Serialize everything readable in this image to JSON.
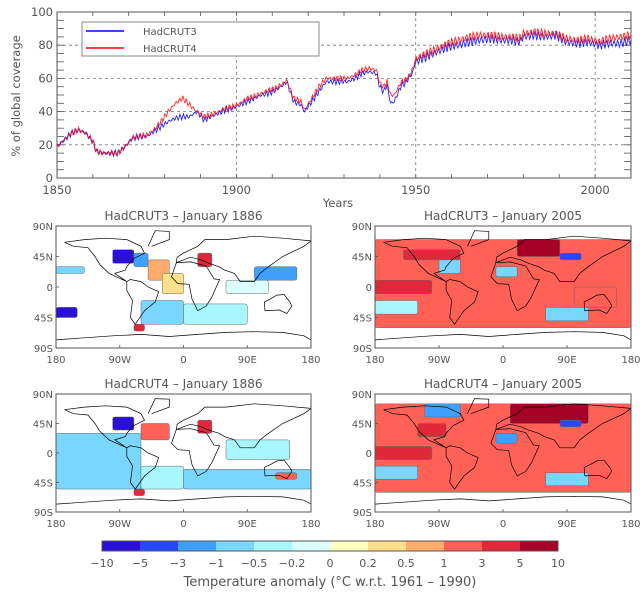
{
  "chart_data": [
    {
      "type": "line",
      "id": "coverage",
      "title": "",
      "xlabel": "Years",
      "ylabel": "% of global coverage",
      "xlim": [
        1850,
        2010
      ],
      "ylim": [
        0,
        100
      ],
      "x_ticks": [
        1850,
        1900,
        1950,
        2000
      ],
      "x_tick_labels": [
        "1850",
        "1900",
        "1950",
        "2000"
      ],
      "y_ticks": [
        0,
        20,
        40,
        60,
        80,
        100
      ],
      "y_tick_labels": [
        "0",
        "20",
        "40",
        "60",
        "80",
        "100"
      ],
      "grid": true,
      "legend": {
        "position": "top-left",
        "entries": [
          "HadCRUT3",
          "HadCRUT4"
        ]
      },
      "series": [
        {
          "name": "HadCRUT3",
          "color": "#0000ff",
          "x": [
            1850,
            1852,
            1854,
            1856,
            1858,
            1860,
            1861,
            1863,
            1865,
            1867,
            1869,
            1871,
            1873,
            1875,
            1877,
            1879,
            1881,
            1883,
            1885,
            1887,
            1889,
            1891,
            1893,
            1895,
            1897,
            1899,
            1901,
            1903,
            1905,
            1907,
            1909,
            1911,
            1913,
            1914,
            1916,
            1918,
            1919,
            1921,
            1923,
            1925,
            1927,
            1929,
            1931,
            1933,
            1935,
            1937,
            1939,
            1940,
            1941,
            1942,
            1943,
            1944,
            1945,
            1946,
            1947,
            1948,
            1949,
            1950,
            1953,
            1956,
            1959,
            1962,
            1965,
            1968,
            1971,
            1974,
            1977,
            1979,
            1980,
            1983,
            1986,
            1989,
            1992,
            1995,
            1998,
            2001,
            2004,
            2007,
            2010
          ],
          "y": [
            19,
            23,
            27,
            29,
            27,
            22,
            16,
            15,
            15,
            15,
            19,
            24,
            25,
            25,
            28,
            31,
            34,
            36,
            37,
            37,
            40,
            35,
            37,
            39,
            41,
            42,
            44,
            46,
            48,
            50,
            51,
            53,
            56,
            58,
            46,
            44,
            40,
            46,
            52,
            58,
            58,
            58,
            58,
            60,
            63,
            64,
            63,
            55,
            52,
            56,
            45,
            46,
            51,
            56,
            57,
            60,
            63,
            70,
            73,
            76,
            79,
            80,
            82,
            83,
            84,
            83,
            83,
            82,
            85,
            86,
            85,
            86,
            82,
            81,
            82,
            80,
            81,
            81,
            83
          ]
        },
        {
          "name": "HadCRUT4",
          "color": "#ff0000",
          "x": [
            1850,
            1852,
            1854,
            1856,
            1858,
            1860,
            1861,
            1863,
            1865,
            1867,
            1869,
            1871,
            1873,
            1875,
            1877,
            1879,
            1881,
            1883,
            1885,
            1887,
            1889,
            1891,
            1893,
            1895,
            1897,
            1899,
            1901,
            1903,
            1905,
            1907,
            1909,
            1911,
            1913,
            1914,
            1916,
            1918,
            1919,
            1921,
            1923,
            1925,
            1927,
            1929,
            1931,
            1933,
            1935,
            1937,
            1939,
            1940,
            1941,
            1942,
            1943,
            1944,
            1945,
            1946,
            1947,
            1948,
            1949,
            1950,
            1953,
            1956,
            1959,
            1962,
            1965,
            1968,
            1971,
            1974,
            1977,
            1979,
            1980,
            1983,
            1986,
            1989,
            1992,
            1995,
            1998,
            2001,
            2004,
            2007,
            2010
          ],
          "y": [
            19,
            23,
            27,
            29,
            27,
            22,
            16,
            15,
            15,
            15,
            19,
            24,
            25,
            26,
            29,
            34,
            40,
            45,
            48,
            44,
            40,
            37,
            38,
            40,
            42,
            43,
            45,
            48,
            49,
            51,
            53,
            54,
            57,
            59,
            48,
            46,
            41,
            48,
            55,
            60,
            60,
            60,
            60,
            62,
            65,
            66,
            65,
            57,
            55,
            58,
            50,
            50,
            54,
            58,
            59,
            61,
            65,
            72,
            75,
            78,
            81,
            83,
            85,
            86,
            86,
            85,
            85,
            84,
            87,
            88,
            87,
            87,
            84,
            83,
            84,
            82,
            84,
            85,
            86
          ]
        }
      ]
    },
    {
      "type": "heatmap",
      "id": "map-h3-1886",
      "title": "HadCRUT3 – January 1886",
      "dataset": "HadCRUT3",
      "xlim": [
        -180,
        180
      ],
      "ylim": [
        -90,
        90
      ],
      "x_tick_labels": [
        "180",
        "90W",
        "0",
        "90E",
        "180"
      ],
      "y_tick_labels": [
        "90N",
        "45N",
        "0",
        "45S",
        "90S"
      ],
      "regions": [
        {
          "lon": [
            -100,
            -70
          ],
          "lat": [
            35,
            55
          ],
          "bin": 0
        },
        {
          "lon": [
            -70,
            -50
          ],
          "lat": [
            30,
            50
          ],
          "bin": 2
        },
        {
          "lon": [
            -50,
            -20
          ],
          "lat": [
            10,
            40
          ],
          "bin": 8
        },
        {
          "lon": [
            -30,
            0
          ],
          "lat": [
            -10,
            20
          ],
          "bin": 7
        },
        {
          "lon": [
            20,
            40
          ],
          "lat": [
            30,
            50
          ],
          "bin": 10
        },
        {
          "lon": [
            -180,
            -140
          ],
          "lat": [
            20,
            30
          ],
          "bin": 3
        },
        {
          "lon": [
            -180,
            -150
          ],
          "lat": [
            -45,
            -30
          ],
          "bin": 0
        },
        {
          "lon": [
            -60,
            0
          ],
          "lat": [
            -55,
            -20
          ],
          "bin": 3
        },
        {
          "lon": [
            0,
            90
          ],
          "lat": [
            -55,
            -25
          ],
          "bin": 4
        },
        {
          "lon": [
            60,
            120
          ],
          "lat": [
            -10,
            10
          ],
          "bin": 5
        },
        {
          "lon": [
            -70,
            -55
          ],
          "lat": [
            -65,
            -55
          ],
          "bin": 10
        },
        {
          "lon": [
            100,
            160
          ],
          "lat": [
            10,
            30
          ],
          "bin": 2
        }
      ]
    },
    {
      "type": "heatmap",
      "id": "map-h3-2005",
      "title": "HadCRUT3 – January 2005",
      "dataset": "HadCRUT3",
      "xlim": [
        -180,
        180
      ],
      "ylim": [
        -90,
        90
      ],
      "x_tick_labels": [
        "180",
        "90W",
        "0",
        "90E",
        "180"
      ],
      "y_tick_labels": [
        "90N",
        "45N",
        "0",
        "45S",
        "90S"
      ],
      "regions": [
        {
          "lon": [
            -180,
            180
          ],
          "lat": [
            -60,
            70
          ],
          "bin": 9
        },
        {
          "lon": [
            20,
            80
          ],
          "lat": [
            45,
            70
          ],
          "bin": 11
        },
        {
          "lon": [
            80,
            110
          ],
          "lat": [
            40,
            50
          ],
          "bin": 1
        },
        {
          "lon": [
            -90,
            -60
          ],
          "lat": [
            20,
            45
          ],
          "bin": 3
        },
        {
          "lon": [
            -180,
            -100
          ],
          "lat": [
            -10,
            10
          ],
          "bin": 10
        },
        {
          "lon": [
            -140,
            -60
          ],
          "lat": [
            40,
            55
          ],
          "bin": 10
        },
        {
          "lon": [
            -10,
            20
          ],
          "lat": [
            15,
            30
          ],
          "bin": 3
        },
        {
          "lon": [
            -180,
            -120
          ],
          "lat": [
            -40,
            -20
          ],
          "bin": 4
        },
        {
          "lon": [
            60,
            120
          ],
          "lat": [
            -50,
            -30
          ],
          "bin": 3
        },
        {
          "lon": [
            100,
            160
          ],
          "lat": [
            -30,
            0
          ],
          "bin": 9
        }
      ]
    },
    {
      "type": "heatmap",
      "id": "map-h4-1886",
      "title": "HadCRUT4 – January 1886",
      "dataset": "HadCRUT4",
      "xlim": [
        -180,
        180
      ],
      "ylim": [
        -90,
        90
      ],
      "x_tick_labels": [
        "180",
        "90W",
        "0",
        "90E",
        "180"
      ],
      "y_tick_labels": [
        "90N",
        "45N",
        "0",
        "45S",
        "90S"
      ],
      "regions": [
        {
          "lon": [
            -100,
            -70
          ],
          "lat": [
            35,
            55
          ],
          "bin": 0
        },
        {
          "lon": [
            -60,
            -20
          ],
          "lat": [
            20,
            45
          ],
          "bin": 9
        },
        {
          "lon": [
            20,
            40
          ],
          "lat": [
            30,
            50
          ],
          "bin": 10
        },
        {
          "lon": [
            -180,
            -60
          ],
          "lat": [
            -55,
            30
          ],
          "bin": 3
        },
        {
          "lon": [
            -60,
            0
          ],
          "lat": [
            -55,
            -20
          ],
          "bin": 4
        },
        {
          "lon": [
            0,
            180
          ],
          "lat": [
            -55,
            -25
          ],
          "bin": 3
        },
        {
          "lon": [
            60,
            150
          ],
          "lat": [
            -10,
            20
          ],
          "bin": 4
        },
        {
          "lon": [
            -70,
            -55
          ],
          "lat": [
            -65,
            -55
          ],
          "bin": 10
        },
        {
          "lon": [
            130,
            160
          ],
          "lat": [
            -40,
            -30
          ],
          "bin": 9
        }
      ]
    },
    {
      "type": "heatmap",
      "id": "map-h4-2005",
      "title": "HadCRUT4 – January 2005",
      "dataset": "HadCRUT4",
      "xlim": [
        -180,
        180
      ],
      "ylim": [
        -90,
        90
      ],
      "x_tick_labels": [
        "180",
        "90W",
        "0",
        "90E",
        "180"
      ],
      "y_tick_labels": [
        "90N",
        "45N",
        "0",
        "45S",
        "90S"
      ],
      "regions": [
        {
          "lon": [
            -180,
            180
          ],
          "lat": [
            -60,
            75
          ],
          "bin": 9
        },
        {
          "lon": [
            10,
            120
          ],
          "lat": [
            45,
            75
          ],
          "bin": 11
        },
        {
          "lon": [
            80,
            110
          ],
          "lat": [
            40,
            50
          ],
          "bin": 1
        },
        {
          "lon": [
            -110,
            -60
          ],
          "lat": [
            55,
            75
          ],
          "bin": 2
        },
        {
          "lon": [
            -120,
            -80
          ],
          "lat": [
            25,
            45
          ],
          "bin": 10
        },
        {
          "lon": [
            -180,
            -100
          ],
          "lat": [
            -10,
            10
          ],
          "bin": 10
        },
        {
          "lon": [
            -10,
            20
          ],
          "lat": [
            15,
            30
          ],
          "bin": 2
        },
        {
          "lon": [
            -180,
            -120
          ],
          "lat": [
            -40,
            -20
          ],
          "bin": 3
        },
        {
          "lon": [
            60,
            120
          ],
          "lat": [
            -50,
            -30
          ],
          "bin": 3
        }
      ]
    }
  ],
  "colorbar": {
    "label": "Temperature anomaly (°C w.r.t. 1961 – 1990)",
    "tick_labels": [
      "−10",
      "−5",
      "−3",
      "−1",
      "−0.5",
      "−0.2",
      "0",
      "0.2",
      "0.5",
      "1",
      "3",
      "5",
      "10"
    ],
    "colors": [
      "#2a0fd6",
      "#2848ff",
      "#3fa0ff",
      "#78d6ff",
      "#aaf6ff",
      "#dcffff",
      "#ffffbf",
      "#ffe08a",
      "#ffab6b",
      "#ff6157",
      "#e0283a",
      "#a50026"
    ]
  }
}
